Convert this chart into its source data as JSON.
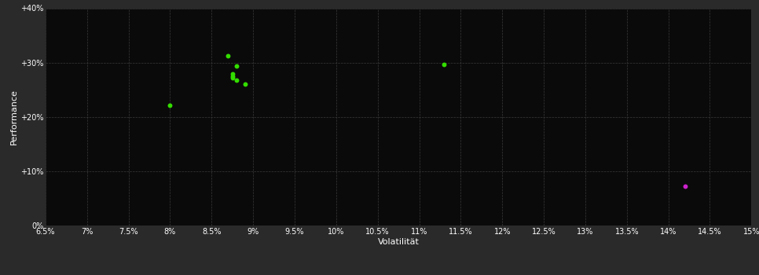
{
  "background_color": "#2a2a2a",
  "plot_bg_color": "#0a0a0a",
  "grid_color": "#3a3a3a",
  "text_color": "#ffffff",
  "xlabel": "Volatilität",
  "ylabel": "Performance",
  "xlim": [
    0.065,
    0.15
  ],
  "ylim": [
    0.0,
    0.4
  ],
  "xticks": [
    0.065,
    0.07,
    0.075,
    0.08,
    0.085,
    0.09,
    0.095,
    0.1,
    0.105,
    0.11,
    0.115,
    0.12,
    0.125,
    0.13,
    0.135,
    0.14,
    0.145,
    0.15
  ],
  "yticks": [
    0.0,
    0.1,
    0.2,
    0.3,
    0.4
  ],
  "ytick_labels": [
    "0%",
    "+10%",
    "+20%",
    "+30%",
    "+40%"
  ],
  "xtick_labels": [
    "6.5%",
    "7%",
    "7.5%",
    "8%",
    "8.5%",
    "9%",
    "9.5%",
    "10%",
    "10.5%",
    "11%",
    "11.5%",
    "12%",
    "12.5%",
    "13%",
    "13.5%",
    "14%",
    "14.5%",
    "15%"
  ],
  "green_points": [
    [
      0.087,
      0.312
    ],
    [
      0.088,
      0.293
    ],
    [
      0.0875,
      0.279
    ],
    [
      0.0875,
      0.275
    ],
    [
      0.0875,
      0.272
    ],
    [
      0.088,
      0.268
    ],
    [
      0.089,
      0.26
    ],
    [
      0.08,
      0.222
    ],
    [
      0.113,
      0.297
    ]
  ],
  "green_color": "#33dd00",
  "magenta_point": [
    0.142,
    0.072
  ],
  "magenta_color": "#cc22cc",
  "dot_size": 18,
  "font_size_ticks": 7,
  "font_size_label": 8
}
